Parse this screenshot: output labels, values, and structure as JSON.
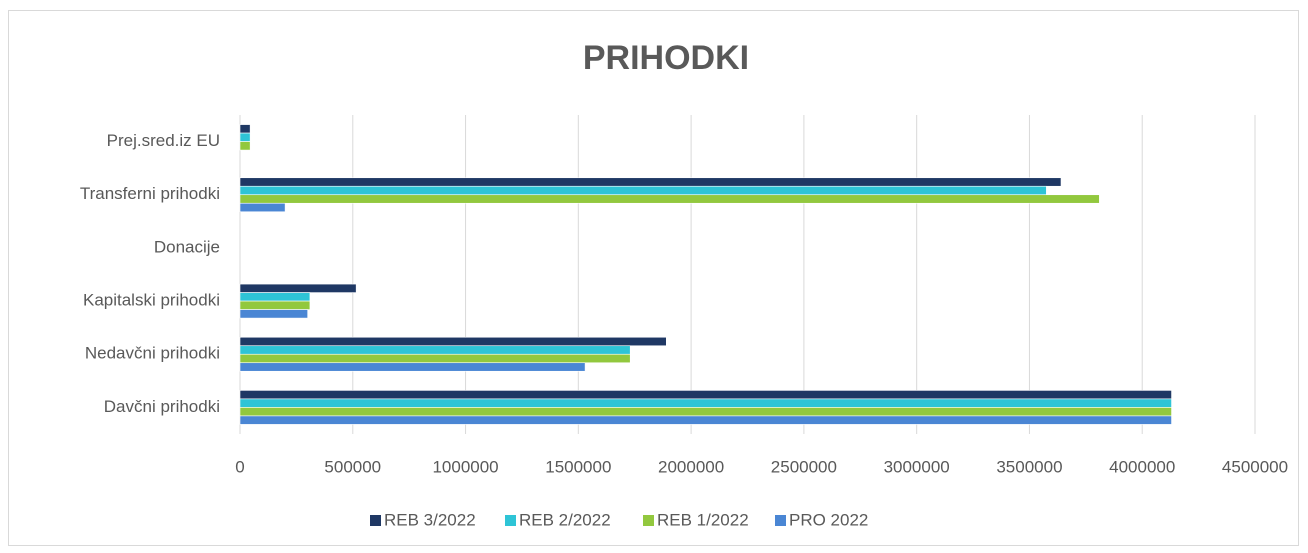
{
  "chart_data": {
    "type": "barh",
    "title": "PRIHODKI",
    "categories": [
      "Davčni prihodki",
      "Nedavčni prihodki",
      "Kapitalski prihodki",
      "Donacije",
      "Transferni prihodki",
      "Prej.sred.iz EU"
    ],
    "series": [
      {
        "name": "REB 3/2022",
        "color": "#1f3864",
        "values": [
          4130000,
          1890000,
          515000,
          0,
          3640000,
          45000
        ]
      },
      {
        "name": "REB 2/2022",
        "color": "#2ec4d6",
        "values": [
          4130000,
          1730000,
          310000,
          0,
          3575000,
          45000
        ]
      },
      {
        "name": "REB 1/2022",
        "color": "#92c83e",
        "values": [
          4130000,
          1730000,
          310000,
          0,
          3810000,
          45000
        ]
      },
      {
        "name": "PRO 2022",
        "color": "#4a86d4",
        "values": [
          4130000,
          1530000,
          300000,
          0,
          200000,
          0
        ]
      }
    ],
    "xlim": [
      0,
      4500000
    ],
    "xticks": [
      0,
      500000,
      1000000,
      1500000,
      2000000,
      2500000,
      3000000,
      3500000,
      4000000,
      4500000
    ],
    "grid": true
  }
}
